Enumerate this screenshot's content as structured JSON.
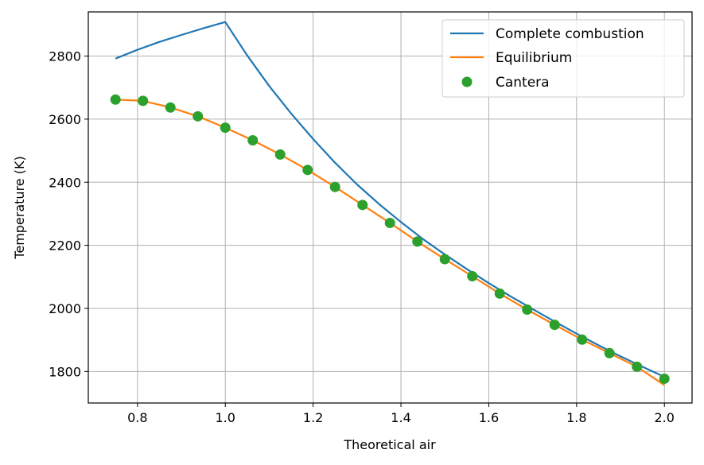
{
  "chart_data": {
    "type": "line",
    "title": "",
    "xlabel": "Theoretical air",
    "ylabel": "Temperature (K)",
    "xlim": [
      0.688,
      2.063
    ],
    "ylim": [
      1700,
      2940
    ],
    "xticks": [
      0.8,
      1.0,
      1.2,
      1.4,
      1.6,
      1.8,
      2.0
    ],
    "xtick_labels": [
      "0.8",
      "1.0",
      "1.2",
      "1.4",
      "1.6",
      "1.8",
      "2.0"
    ],
    "yticks": [
      1800,
      2000,
      2200,
      2400,
      2600,
      2800
    ],
    "ytick_labels": [
      "1800",
      "2000",
      "2200",
      "2400",
      "2600",
      "2800"
    ],
    "grid": true,
    "legend_position": "top-right",
    "series": [
      {
        "name": "Complete combustion",
        "style": "line",
        "color": "#1f77b4",
        "x": [
          0.75,
          0.8,
          0.85,
          0.9,
          0.95,
          1.0,
          1.05,
          1.1,
          1.15,
          1.2,
          1.25,
          1.3,
          1.35,
          1.4,
          1.45,
          1.5,
          1.55,
          1.6,
          1.65,
          1.7,
          1.75,
          1.8,
          1.85,
          1.9,
          1.95,
          2.0
        ],
        "y": [
          2792,
          2820,
          2845,
          2867,
          2888,
          2908,
          2802,
          2705,
          2618,
          2537,
          2462,
          2393,
          2331,
          2274,
          2220,
          2171,
          2125,
          2080,
          2038,
          1998,
          1958,
          1920,
          1883,
          1848,
          1815,
          1783
        ]
      },
      {
        "name": "Equilibrium",
        "style": "line",
        "color": "#ff7f0e",
        "x": [
          0.75,
          0.8125,
          0.875,
          0.9375,
          1.0,
          1.0625,
          1.125,
          1.1875,
          1.25,
          1.3125,
          1.375,
          1.4375,
          1.5,
          1.5625,
          1.625,
          1.6875,
          1.75,
          1.8125,
          1.875,
          1.9375,
          2.0
        ],
        "y": [
          2662,
          2658,
          2637,
          2609,
          2573,
          2533,
          2488,
          2439,
          2385,
          2328,
          2271,
          2212,
          2156,
          2102,
          2047,
          1996,
          1948,
          1901,
          1858,
          1815,
          1757
        ]
      },
      {
        "name": "Cantera",
        "style": "markers",
        "color": "#2ca02c",
        "x": [
          0.75,
          0.8125,
          0.875,
          0.9375,
          1.0,
          1.0625,
          1.125,
          1.1875,
          1.25,
          1.3125,
          1.375,
          1.4375,
          1.5,
          1.5625,
          1.625,
          1.6875,
          1.75,
          1.8125,
          1.875,
          1.9375,
          2.0
        ],
        "y": [
          2662,
          2658,
          2637,
          2609,
          2573,
          2533,
          2488,
          2439,
          2385,
          2328,
          2271,
          2212,
          2156,
          2102,
          2047,
          1996,
          1948,
          1901,
          1858,
          1815,
          1777
        ]
      }
    ]
  }
}
